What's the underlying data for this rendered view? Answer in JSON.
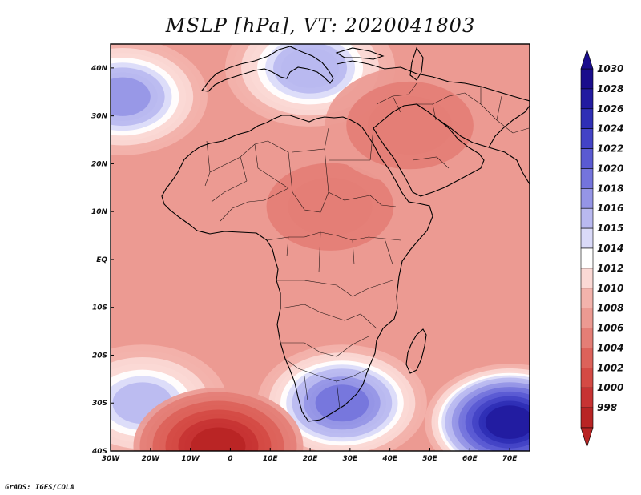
{
  "title": "MSLP [hPa], VT: 2020041803",
  "credit": "GrADS: IGES/COLA",
  "map": {
    "projection": "lat-lon",
    "lon_range": [
      -30,
      75
    ],
    "lat_range": [
      -40,
      45
    ],
    "lon_ticks": [
      "30W",
      "20W",
      "10W",
      "0",
      "10E",
      "20E",
      "30E",
      "40E",
      "50E",
      "60E",
      "70E"
    ],
    "lat_ticks": [
      "40S",
      "30S",
      "20S",
      "10S",
      "EQ",
      "10N",
      "20N",
      "30N",
      "40N"
    ],
    "pressure_field": {
      "background_hPa": 1009,
      "centers": [
        {
          "name": "high-south-indian-ocean",
          "lon": 70,
          "lat": -34,
          "value_hPa": 1028
        },
        {
          "name": "high-south-atlantic-west",
          "lon": -22,
          "lat": -30,
          "value_hPa": 1016
        },
        {
          "name": "high-north-atlantic",
          "lon": -27,
          "lat": 34,
          "value_hPa": 1018
        },
        {
          "name": "high-mediterranean",
          "lon": 20,
          "lat": 40,
          "value_hPa": 1017
        },
        {
          "name": "high-south-africa",
          "lon": 28,
          "lat": -30,
          "value_hPa": 1020
        },
        {
          "name": "low-south-atlantic",
          "lon": -3,
          "lat": -39,
          "value_hPa": 999
        },
        {
          "name": "low-sahel",
          "lon": 25,
          "lat": 11,
          "value_hPa": 1006
        },
        {
          "name": "low-arabia",
          "lon": 45,
          "lat": 28,
          "value_hPa": 1006
        }
      ]
    }
  },
  "colorbar": {
    "levels": [
      "1030",
      "1028",
      "1026",
      "1024",
      "1022",
      "1020",
      "1018",
      "1016",
      "1015",
      "1014",
      "1012",
      "1010",
      "1008",
      "1006",
      "1004",
      "1002",
      "1000",
      "998"
    ],
    "colors": [
      "#1a0d8c",
      "#221ba0",
      "#2f2fb5",
      "#4343c6",
      "#5a5ad2",
      "#7474dc",
      "#9595e6",
      "#b9b9f0",
      "#dadaf8",
      "#ffffff",
      "#fbd9d5",
      "#f3b3ac",
      "#ec9a92",
      "#e47e76",
      "#dc625a",
      "#d44a44",
      "#c73333",
      "#b82424"
    ]
  }
}
